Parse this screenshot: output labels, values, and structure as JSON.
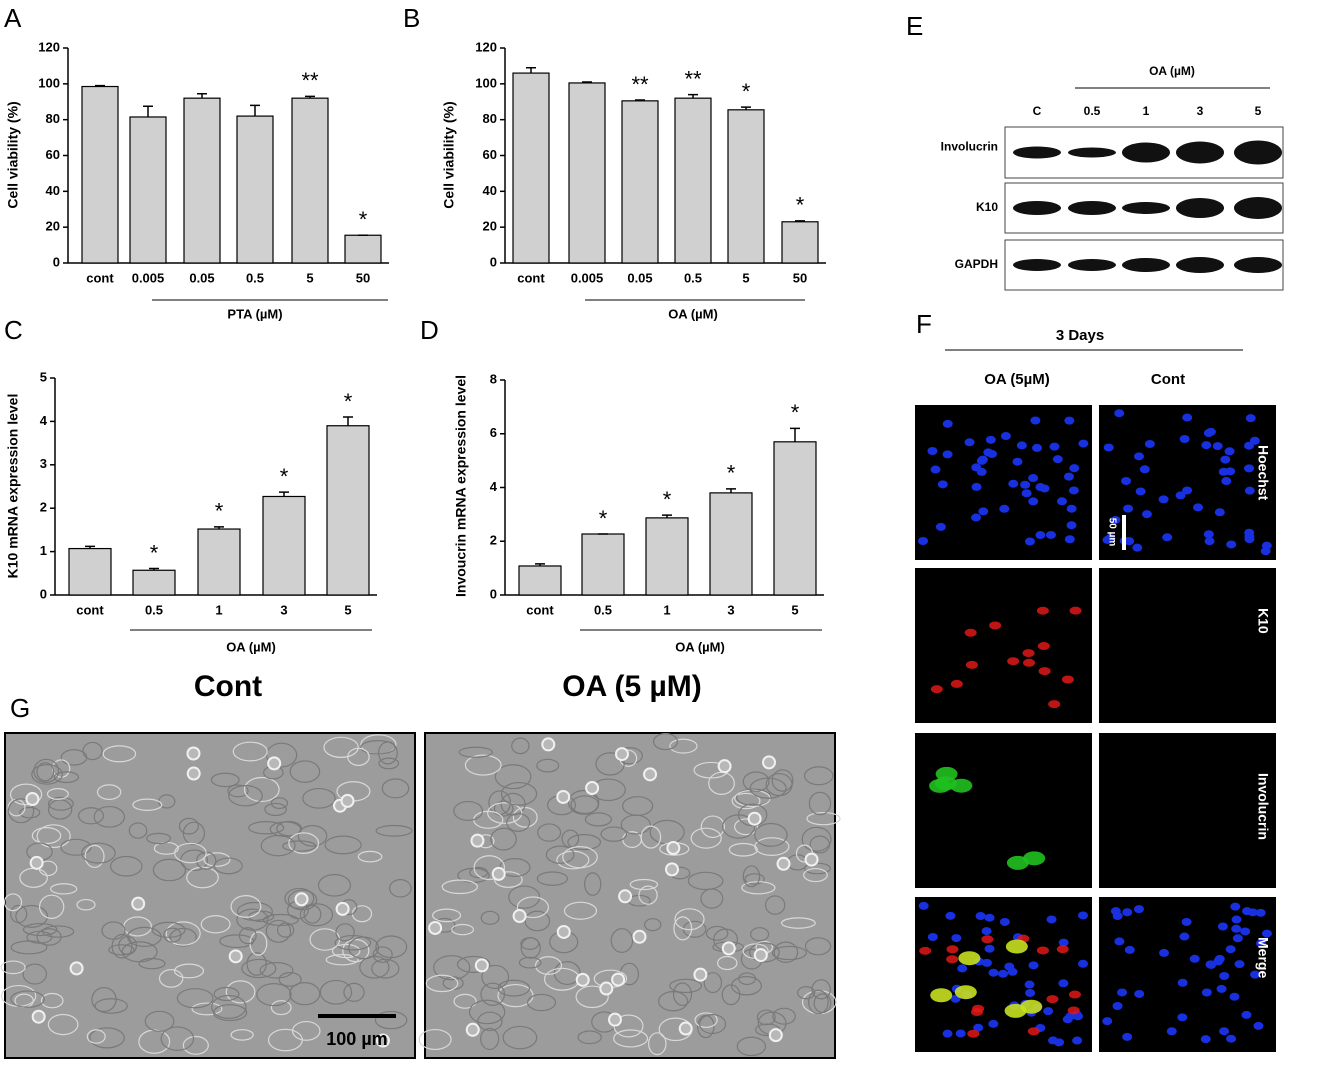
{
  "chart_data": [
    {
      "type": "bar",
      "panel": "A",
      "ylabel": "Cell viability (%)",
      "xlabel": "PTA (µM)",
      "categories": [
        "cont",
        "0.005",
        "0.05",
        "0.5",
        "5",
        "50"
      ],
      "values": [
        98.5,
        81.5,
        92,
        82,
        92,
        15.5
      ],
      "errors": [
        0.5,
        6,
        2.5,
        6,
        1,
        0
      ],
      "annotations": [
        null,
        null,
        null,
        null,
        "**",
        "*"
      ],
      "ylim": [
        0,
        120
      ],
      "yticks": [
        0,
        20,
        40,
        60,
        80,
        100,
        120
      ],
      "color": "#d0d0d0"
    },
    {
      "type": "bar",
      "panel": "B",
      "ylabel": "Cell viability (%)",
      "xlabel": "OA (µM)",
      "categories": [
        "cont",
        "0.005",
        "0.05",
        "0.5",
        "5",
        "50"
      ],
      "values": [
        106,
        100.5,
        90.5,
        92,
        85.5,
        23
      ],
      "errors": [
        3,
        0.5,
        0.5,
        2,
        1.5,
        0.5
      ],
      "annotations": [
        null,
        null,
        "**",
        "**",
        "*",
        "*"
      ],
      "ylim": [
        0,
        120
      ],
      "yticks": [
        0,
        20,
        40,
        60,
        80,
        100,
        120
      ],
      "color": "#d0d0d0"
    },
    {
      "type": "bar",
      "panel": "C",
      "ylabel": "K10 mRNA expression level",
      "xlabel": "OA (µM)",
      "categories": [
        "cont",
        "0.5",
        "1",
        "3",
        "5"
      ],
      "values": [
        1.07,
        0.57,
        1.52,
        2.27,
        3.9
      ],
      "errors": [
        0.05,
        0.04,
        0.05,
        0.1,
        0.2
      ],
      "annotations": [
        null,
        "*",
        "*",
        "*",
        "*"
      ],
      "ylim": [
        0,
        5
      ],
      "yticks": [
        0,
        1,
        2,
        3,
        4,
        5
      ],
      "color": "#d0d0d0"
    },
    {
      "type": "bar",
      "panel": "D",
      "ylabel": "Invoucrin mRNA expression level",
      "xlabel": "OA (µM)",
      "categories": [
        "cont",
        "0.5",
        "1",
        "3",
        "5"
      ],
      "values": [
        1.08,
        2.27,
        2.87,
        3.8,
        5.7
      ],
      "errors": [
        0.08,
        0,
        0.1,
        0.15,
        0.5
      ],
      "annotations": [
        null,
        "*",
        "*",
        "*",
        "*"
      ],
      "ylim": [
        0,
        8
      ],
      "yticks": [
        0,
        2,
        4,
        6,
        8
      ],
      "color": "#d0d0d0"
    }
  ],
  "blot": {
    "panel": "E",
    "header": "OA (µM)",
    "lanes": [
      "C",
      "0.5",
      "1",
      "3",
      "5"
    ],
    "rows": [
      "Involucrin",
      "K10",
      "GAPDH"
    ]
  },
  "fluorescence": {
    "panel": "F",
    "title": "3 Days",
    "columns": [
      "OA (5µM)",
      "Cont"
    ],
    "rows": [
      "Hoechst",
      "K10",
      "Involucrin",
      "Merge"
    ],
    "scale_bar": "50 µm"
  },
  "micrographs": {
    "panel": "G",
    "titles": [
      "Cont",
      "OA (5 µM)"
    ],
    "scale_bar": "100 µm"
  }
}
